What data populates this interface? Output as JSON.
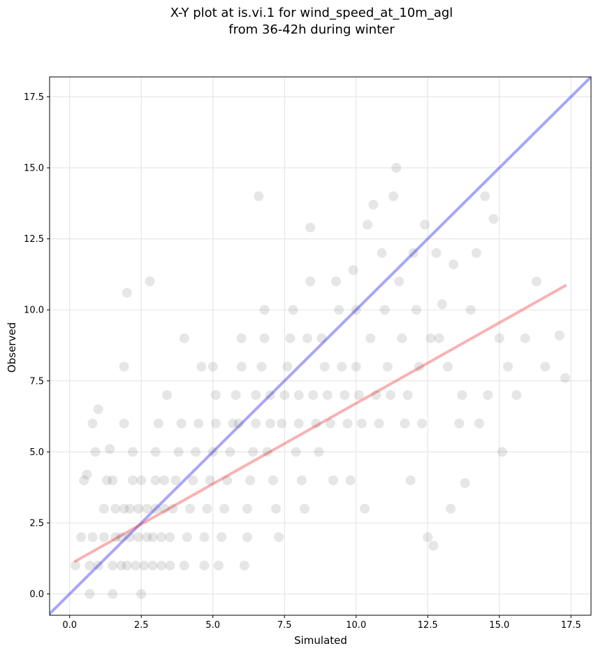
{
  "chart_data": {
    "type": "scatter",
    "title_line1": "X-Y plot at is.vi.1 for wind_speed_at_10m_agl",
    "title_line2": "from 36-42h during winter",
    "xlabel": "Simulated",
    "ylabel": "Observed",
    "xlim": [
      -0.7,
      18.2
    ],
    "ylim": [
      -0.75,
      18.2
    ],
    "xticks": [
      0.0,
      2.5,
      5.0,
      7.5,
      10.0,
      12.5,
      15.0,
      17.5
    ],
    "yticks": [
      0.0,
      2.5,
      5.0,
      7.5,
      10.0,
      12.5,
      15.0,
      17.5
    ],
    "xtick_labels": [
      "0.0",
      "2.5",
      "5.0",
      "7.5",
      "10.0",
      "12.5",
      "15.0",
      "17.5"
    ],
    "ytick_labels": [
      "0.0",
      "2.5",
      "5.0",
      "7.5",
      "10.0",
      "12.5",
      "15.0",
      "17.5"
    ],
    "grid": true,
    "colors": {
      "points": "#333333",
      "one_to_one_line": "#0000ee",
      "fit_line": "#ee2222"
    },
    "reference_lines": [
      {
        "kind": "one-to-one",
        "x": [
          -0.7,
          18.2
        ],
        "y": [
          -0.7,
          18.2
        ]
      },
      {
        "kind": "fit",
        "x": [
          0.2,
          17.3
        ],
        "y": [
          1.15,
          10.85
        ]
      }
    ],
    "series": [
      {
        "points": [
          [
            0.2,
            1.0
          ],
          [
            0.4,
            2.0
          ],
          [
            0.6,
            4.2
          ],
          [
            0.5,
            4.0
          ],
          [
            0.7,
            1.0
          ],
          [
            0.8,
            2.0
          ],
          [
            0.8,
            6.0
          ],
          [
            0.9,
            5.0
          ],
          [
            1.0,
            6.5
          ],
          [
            0.7,
            0.0
          ],
          [
            1.0,
            1.0
          ],
          [
            1.2,
            2.0
          ],
          [
            1.2,
            3.0
          ],
          [
            1.3,
            4.0
          ],
          [
            1.5,
            4.0
          ],
          [
            1.4,
            5.1
          ],
          [
            1.5,
            1.0
          ],
          [
            1.6,
            2.0
          ],
          [
            1.6,
            3.0
          ],
          [
            1.5,
            0.0
          ],
          [
            1.8,
            1.0
          ],
          [
            1.8,
            2.0
          ],
          [
            1.9,
            3.0
          ],
          [
            1.9,
            6.0
          ],
          [
            2.0,
            10.6
          ],
          [
            1.9,
            8.0
          ],
          [
            2.0,
            1.0
          ],
          [
            2.1,
            2.0
          ],
          [
            2.1,
            3.0
          ],
          [
            2.2,
            4.0
          ],
          [
            2.2,
            5.0
          ],
          [
            2.3,
            1.0
          ],
          [
            2.4,
            2.0
          ],
          [
            2.4,
            3.0
          ],
          [
            2.5,
            4.0
          ],
          [
            2.5,
            0.0
          ],
          [
            2.6,
            1.0
          ],
          [
            2.7,
            2.0
          ],
          [
            2.7,
            3.0
          ],
          [
            2.8,
            11.0
          ],
          [
            2.9,
            1.0
          ],
          [
            2.9,
            2.0
          ],
          [
            3.0,
            3.0
          ],
          [
            3.0,
            4.0
          ],
          [
            3.0,
            5.0
          ],
          [
            3.1,
            6.0
          ],
          [
            3.2,
            1.0
          ],
          [
            3.2,
            2.0
          ],
          [
            3.3,
            3.0
          ],
          [
            3.3,
            4.0
          ],
          [
            3.4,
            7.0
          ],
          [
            3.5,
            1.0
          ],
          [
            3.5,
            2.0
          ],
          [
            3.6,
            3.0
          ],
          [
            3.7,
            4.0
          ],
          [
            3.8,
            5.0
          ],
          [
            3.9,
            6.0
          ],
          [
            4.0,
            9.0
          ],
          [
            4.0,
            1.0
          ],
          [
            4.1,
            2.0
          ],
          [
            4.2,
            3.0
          ],
          [
            4.3,
            4.0
          ],
          [
            4.4,
            5.0
          ],
          [
            4.5,
            6.0
          ],
          [
            4.6,
            8.0
          ],
          [
            4.7,
            1.0
          ],
          [
            4.7,
            2.0
          ],
          [
            4.8,
            3.0
          ],
          [
            4.9,
            4.0
          ],
          [
            5.0,
            5.0
          ],
          [
            5.1,
            6.0
          ],
          [
            5.1,
            7.0
          ],
          [
            5.0,
            8.0
          ],
          [
            5.2,
            1.0
          ],
          [
            5.3,
            2.0
          ],
          [
            5.4,
            3.0
          ],
          [
            5.5,
            4.0
          ],
          [
            5.6,
            5.0
          ],
          [
            5.7,
            6.0
          ],
          [
            5.8,
            7.0
          ],
          [
            5.9,
            6.0
          ],
          [
            6.0,
            8.0
          ],
          [
            6.0,
            9.0
          ],
          [
            6.1,
            1.0
          ],
          [
            6.2,
            2.0
          ],
          [
            6.2,
            3.0
          ],
          [
            6.3,
            4.0
          ],
          [
            6.4,
            5.0
          ],
          [
            6.5,
            6.0
          ],
          [
            6.5,
            7.0
          ],
          [
            6.6,
            14.0
          ],
          [
            6.7,
            8.0
          ],
          [
            6.8,
            9.0
          ],
          [
            6.8,
            10.0
          ],
          [
            6.9,
            5.0
          ],
          [
            7.0,
            6.0
          ],
          [
            7.0,
            7.0
          ],
          [
            7.1,
            4.0
          ],
          [
            7.2,
            3.0
          ],
          [
            7.3,
            2.0
          ],
          [
            7.4,
            6.0
          ],
          [
            7.5,
            7.0
          ],
          [
            7.6,
            8.0
          ],
          [
            7.7,
            9.0
          ],
          [
            7.8,
            10.0
          ],
          [
            7.9,
            5.0
          ],
          [
            8.0,
            6.0
          ],
          [
            8.0,
            7.0
          ],
          [
            8.1,
            4.0
          ],
          [
            8.2,
            3.0
          ],
          [
            8.3,
            9.0
          ],
          [
            8.4,
            11.0
          ],
          [
            8.4,
            12.9
          ],
          [
            8.5,
            7.0
          ],
          [
            8.6,
            6.0
          ],
          [
            8.7,
            5.0
          ],
          [
            8.8,
            9.0
          ],
          [
            8.9,
            8.0
          ],
          [
            9.0,
            7.0
          ],
          [
            9.1,
            6.0
          ],
          [
            9.2,
            4.0
          ],
          [
            9.3,
            11.0
          ],
          [
            9.4,
            10.0
          ],
          [
            9.5,
            8.0
          ],
          [
            9.6,
            7.0
          ],
          [
            9.7,
            6.0
          ],
          [
            9.8,
            4.0
          ],
          [
            9.9,
            11.4
          ],
          [
            10.0,
            10.0
          ],
          [
            10.0,
            8.0
          ],
          [
            10.1,
            7.0
          ],
          [
            10.2,
            6.0
          ],
          [
            10.3,
            3.0
          ],
          [
            10.4,
            13.0
          ],
          [
            10.5,
            9.0
          ],
          [
            10.6,
            13.7
          ],
          [
            10.7,
            7.0
          ],
          [
            10.8,
            6.0
          ],
          [
            10.9,
            12.0
          ],
          [
            11.0,
            10.0
          ],
          [
            11.1,
            8.0
          ],
          [
            11.2,
            7.0
          ],
          [
            11.3,
            14.0
          ],
          [
            11.4,
            15.0
          ],
          [
            11.5,
            11.0
          ],
          [
            11.6,
            9.0
          ],
          [
            11.7,
            6.0
          ],
          [
            11.8,
            7.0
          ],
          [
            11.9,
            4.0
          ],
          [
            12.0,
            12.0
          ],
          [
            12.1,
            10.0
          ],
          [
            12.2,
            8.0
          ],
          [
            12.3,
            6.0
          ],
          [
            12.4,
            13.0
          ],
          [
            12.5,
            2.0
          ],
          [
            12.6,
            9.0
          ],
          [
            12.7,
            1.7
          ],
          [
            12.8,
            12.0
          ],
          [
            12.9,
            9.0
          ],
          [
            13.0,
            10.2
          ],
          [
            13.2,
            8.0
          ],
          [
            13.3,
            3.0
          ],
          [
            13.4,
            11.6
          ],
          [
            13.6,
            6.0
          ],
          [
            13.7,
            7.0
          ],
          [
            13.8,
            3.9
          ],
          [
            14.0,
            10.0
          ],
          [
            14.2,
            12.0
          ],
          [
            14.3,
            6.0
          ],
          [
            14.5,
            14.0
          ],
          [
            14.6,
            7.0
          ],
          [
            14.8,
            13.2
          ],
          [
            15.0,
            9.0
          ],
          [
            15.1,
            5.0
          ],
          [
            15.3,
            8.0
          ],
          [
            15.6,
            7.0
          ],
          [
            15.9,
            9.0
          ],
          [
            16.3,
            11.0
          ],
          [
            16.6,
            8.0
          ],
          [
            17.1,
            9.1
          ],
          [
            17.3,
            7.6
          ]
        ]
      }
    ]
  }
}
